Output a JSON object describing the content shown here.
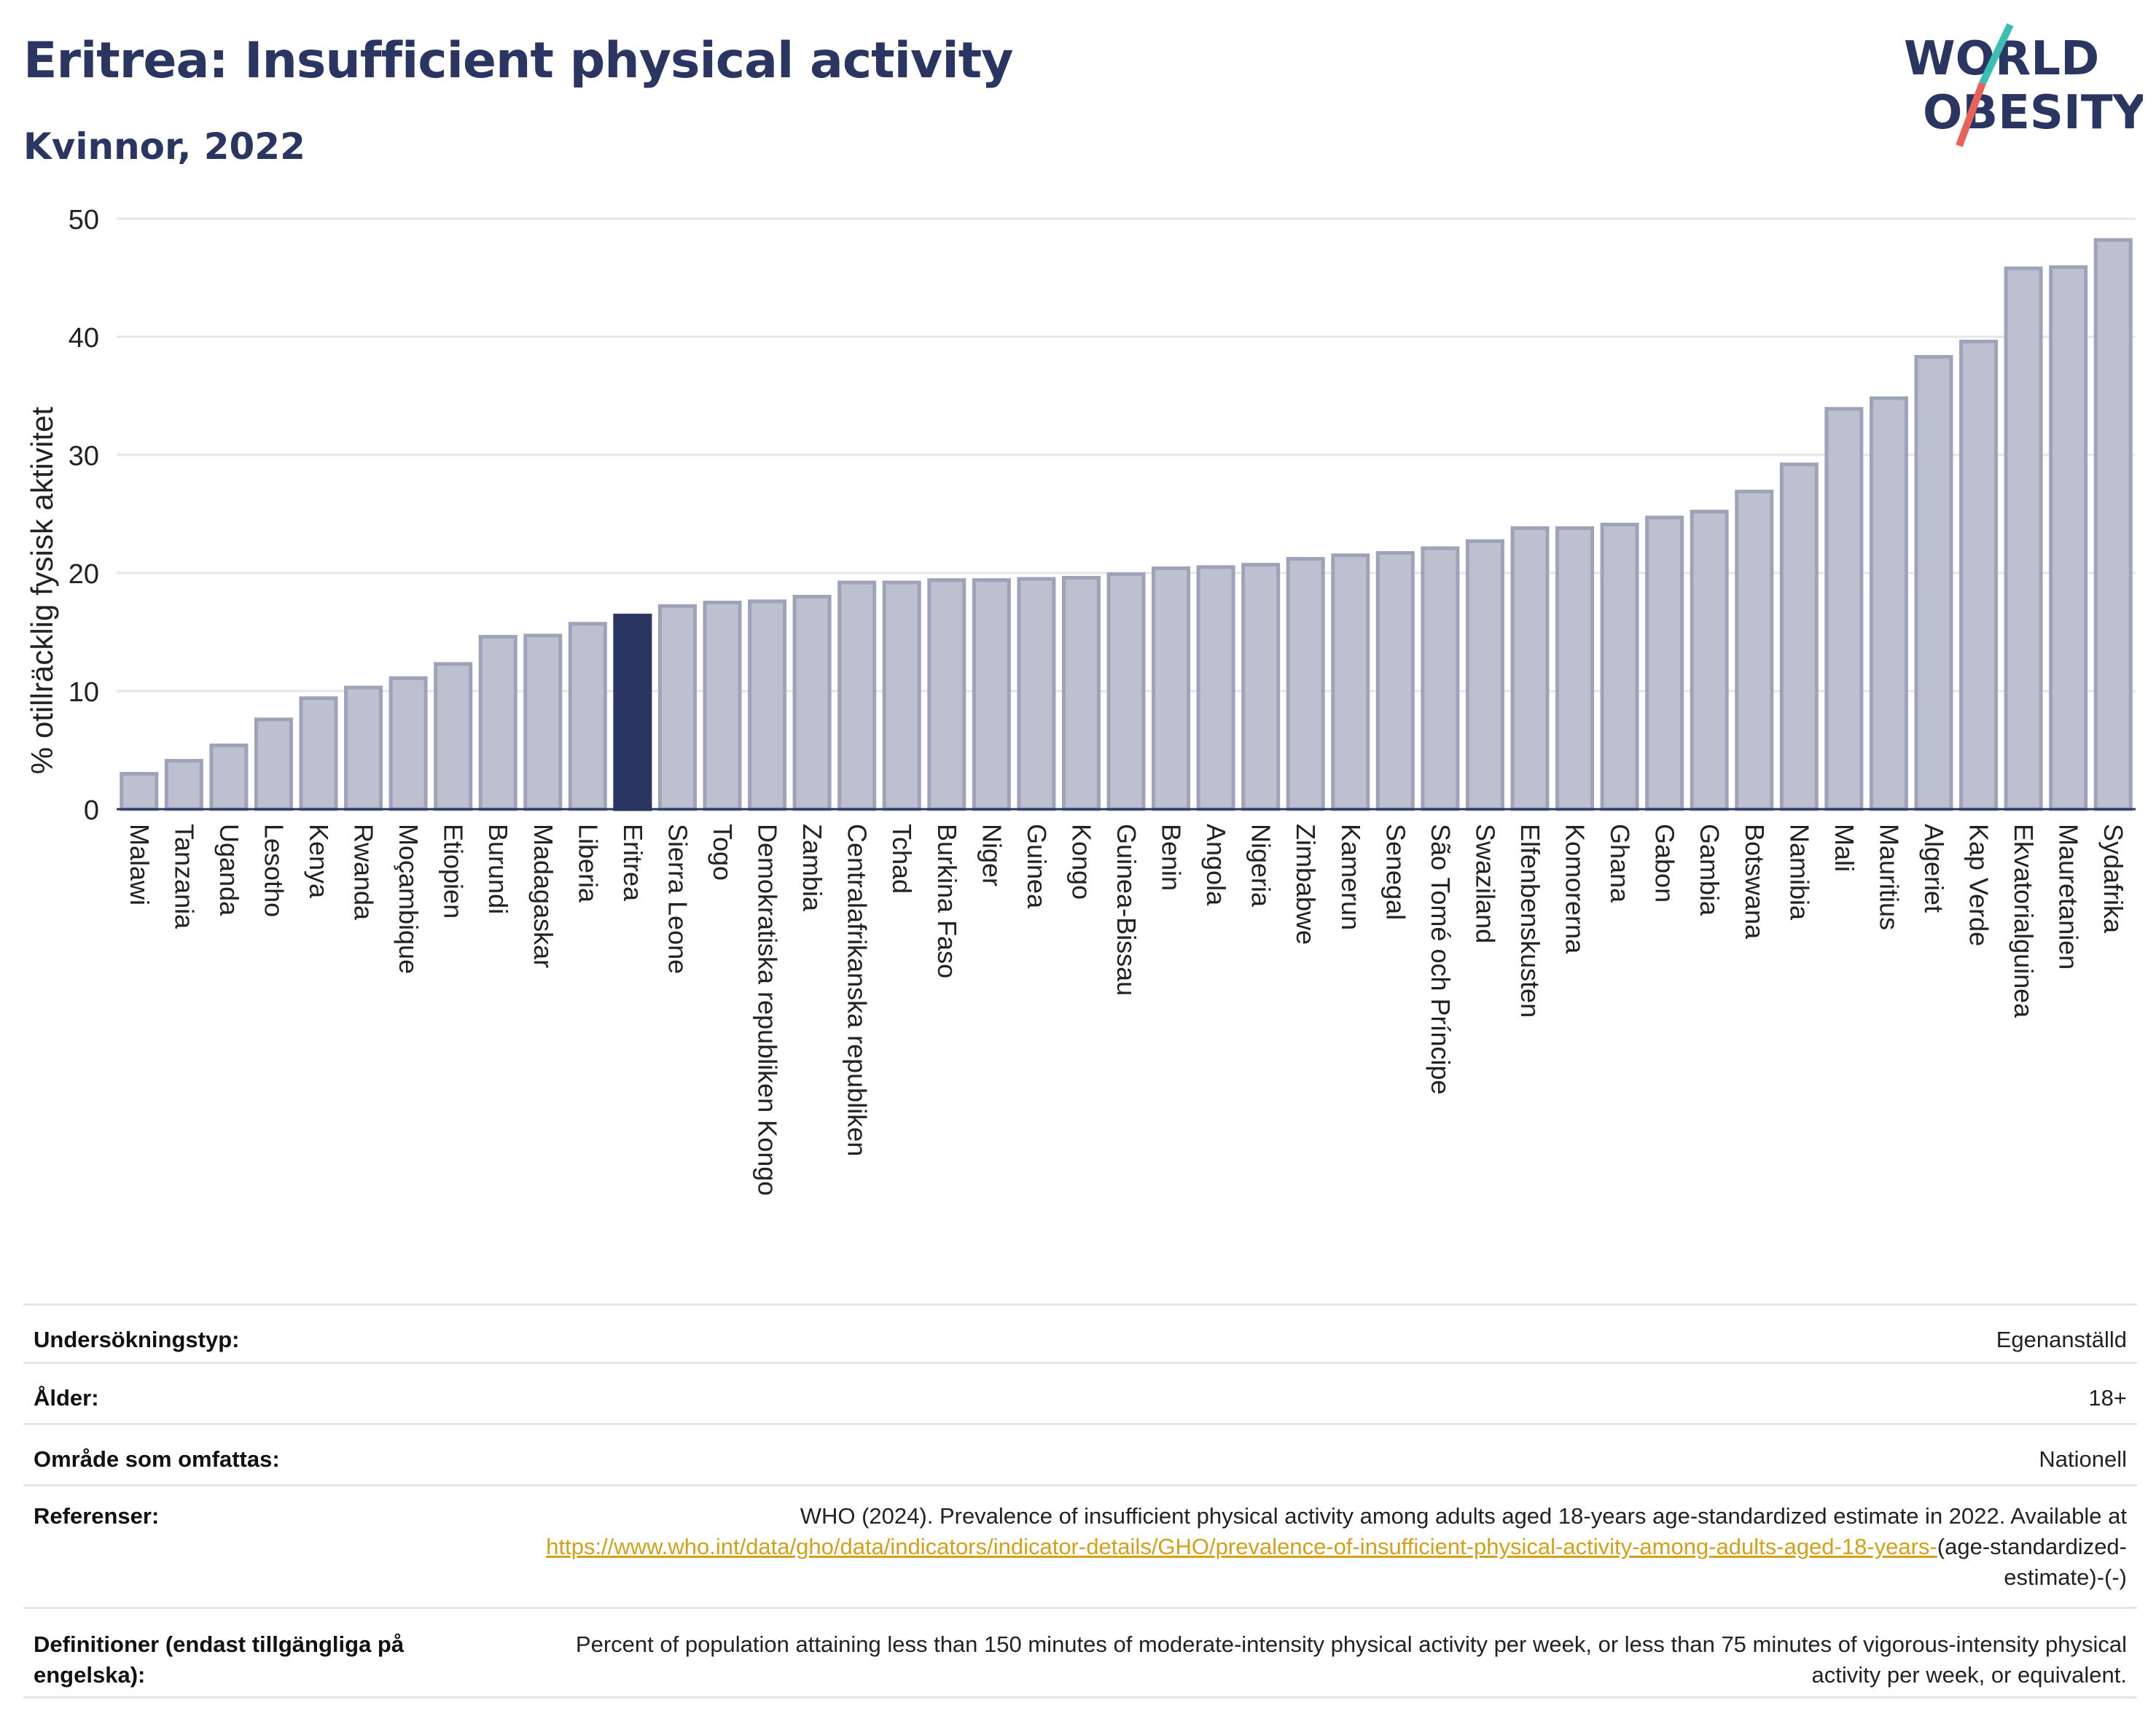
{
  "header": {
    "title": "Eritrea: Insufficient physical activity",
    "subtitle": "Kvinnor, 2022"
  },
  "logo": {
    "line1": "WORLD",
    "line2": "OBESITY",
    "accent_teal": "#3bbfb4",
    "accent_red": "#e8625a",
    "text_color": "#2b3561"
  },
  "colors": {
    "bar": "#bcc0cf",
    "bar_stroke": "#9ea3b9",
    "highlight": "#2b3561",
    "grid": "#e6e6e6"
  },
  "chart_data": {
    "type": "bar",
    "title": "Eritrea: Insufficient physical activity",
    "subtitle": "Kvinnor, 2022",
    "xlabel": "",
    "ylabel": "% otillräcklig fysisk aktivitet",
    "ylim": [
      0,
      50
    ],
    "yticks": [
      0,
      10,
      20,
      30,
      40,
      50
    ],
    "grid": true,
    "highlight": "Eritrea",
    "categories": [
      "Malawi",
      "Tanzania",
      "Uganda",
      "Lesotho",
      "Kenya",
      "Rwanda",
      "Moçambique",
      "Etiopien",
      "Burundi",
      "Madagaskar",
      "Liberia",
      "Eritrea",
      "Sierra Leone",
      "Togo",
      "Demokratiska republiken Kongo",
      "Zambia",
      "Centralafrikanska republiken",
      "Tchad",
      "Burkina Faso",
      "Niger",
      "Guinea",
      "Kongo",
      "Guinea-Bissau",
      "Benin",
      "Angola",
      "Nigeria",
      "Zimbabwe",
      "Kamerun",
      "Senegal",
      "São Tomé och Príncipe",
      "Swaziland",
      "Elfenbenskusten",
      "Komorerna",
      "Ghana",
      "Gabon",
      "Gambia",
      "Botswana",
      "Namibia",
      "Mali",
      "Mauritius",
      "Algeriet",
      "Kap Verde",
      "Ekvatorialguinea",
      "Mauretanien",
      "Sydafrika"
    ],
    "values": [
      3.0,
      4.1,
      5.4,
      7.6,
      9.4,
      10.3,
      11.1,
      12.3,
      14.6,
      14.7,
      15.7,
      16.4,
      17.2,
      17.5,
      17.6,
      18.0,
      19.2,
      19.2,
      19.4,
      19.4,
      19.5,
      19.6,
      19.9,
      20.4,
      20.5,
      20.7,
      21.2,
      21.5,
      21.7,
      22.1,
      22.7,
      23.8,
      23.8,
      24.1,
      24.7,
      25.2,
      26.9,
      29.2,
      33.9,
      34.8,
      38.3,
      39.6,
      45.8,
      45.9,
      48.2
    ]
  },
  "info": {
    "rows": [
      {
        "label": "Undersökningstyp:",
        "value": "Egenanställd"
      },
      {
        "label": "Ålder:",
        "value": "18+"
      },
      {
        "label": "Område som omfattas:",
        "value": "Nationell"
      },
      {
        "label": "Referenser:",
        "value": "WHO (2024). Prevalence of insufficient physical activity among adults aged 18-years age-standardized estimate in 2022. Available at",
        "link": "https://www.who.int/data/gho/data/indicators/indicator-details/GHO/prevalence-of-insufficient-physical-activity-among-adults-aged-18-years-",
        "suffix": "(age-standardized-estimate)-(-)"
      },
      {
        "label": "Definitioner (endast tillgängliga på engelska):",
        "value": "Percent of population attaining less than 150 minutes of moderate-intensity physical activity per week, or less than 75 minutes of vigorous-intensity physical activity per week, or equivalent."
      }
    ]
  }
}
